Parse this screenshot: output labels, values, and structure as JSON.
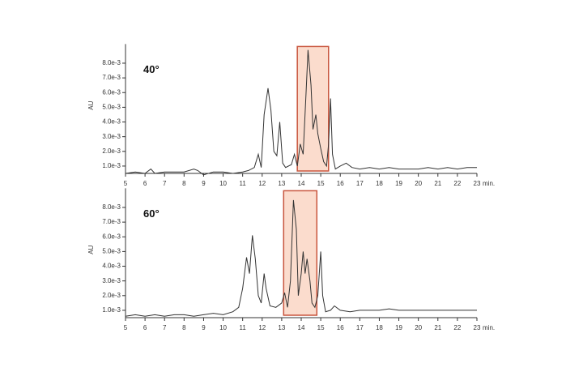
{
  "chart_data": [
    {
      "type": "line",
      "label": "40°",
      "ylabel": "AU",
      "xlabel": "min.",
      "line_color": "#333333",
      "highlight": {
        "x": [
          13.8,
          15.4
        ],
        "stroke": "#c8553d",
        "fill": "#fbdccd"
      },
      "xlim": [
        5,
        23
      ],
      "xticks": [
        5,
        6,
        7,
        8,
        9,
        10,
        11,
        12,
        13,
        14,
        15,
        16,
        17,
        18,
        19,
        20,
        21,
        22,
        23
      ],
      "ylim": [
        0.0005,
        0.0093
      ],
      "yticks": [
        {
          "value": 0.001,
          "label": "1.0e-3"
        },
        {
          "value": 0.002,
          "label": "2.0e-3"
        },
        {
          "value": 0.003,
          "label": "3.0e-3"
        },
        {
          "value": 0.004,
          "label": "4.0e-3"
        },
        {
          "value": 0.005,
          "label": "5.0e-3"
        },
        {
          "value": 0.006,
          "label": "6.0e-3"
        },
        {
          "value": 0.007,
          "label": "7.0e-3"
        },
        {
          "value": 0.008,
          "label": "8.0e-3"
        }
      ],
      "x": [
        5,
        5.5,
        6,
        6.3,
        6.5,
        7,
        7.5,
        8,
        8.5,
        8.7,
        9,
        9.5,
        10,
        10.5,
        11,
        11.3,
        11.6,
        11.8,
        11.95,
        12.1,
        12.3,
        12.45,
        12.6,
        12.75,
        12.9,
        13.05,
        13.2,
        13.5,
        13.65,
        13.8,
        13.95,
        14.1,
        14.25,
        14.35,
        14.5,
        14.6,
        14.75,
        14.85,
        15.0,
        15.15,
        15.3,
        15.4,
        15.5,
        15.6,
        15.75,
        16,
        16.3,
        16.6,
        17,
        17.5,
        18,
        18.5,
        19,
        19.5,
        20,
        20.5,
        21,
        21.5,
        22,
        22.5,
        23
      ],
      "values": [
        0.0005,
        0.0006,
        0.0005,
        0.0008,
        0.0005,
        0.0006,
        0.0006,
        0.0006,
        0.0008,
        0.0007,
        0.0004,
        0.0006,
        0.0006,
        0.0005,
        0.0006,
        0.0007,
        0.0009,
        0.0018,
        0.0009,
        0.0045,
        0.0063,
        0.0048,
        0.002,
        0.0017,
        0.004,
        0.0012,
        0.0009,
        0.0011,
        0.0018,
        0.001,
        0.0025,
        0.0018,
        0.006,
        0.0089,
        0.0065,
        0.0035,
        0.0045,
        0.0032,
        0.0022,
        0.0013,
        0.001,
        0.0025,
        0.0056,
        0.0018,
        0.0008,
        0.001,
        0.0012,
        0.0009,
        0.0008,
        0.0009,
        0.0008,
        0.0009,
        0.0008,
        0.0008,
        0.0008,
        0.0009,
        0.0008,
        0.0009,
        0.0008,
        0.0009,
        0.0009
      ]
    },
    {
      "type": "line",
      "label": "60°",
      "ylabel": "AU",
      "xlabel": "min.",
      "line_color": "#333333",
      "highlight": {
        "x": [
          13.1,
          14.8
        ],
        "stroke": "#c8553d",
        "fill": "#fbdccd"
      },
      "xlim": [
        5,
        23
      ],
      "xticks": [
        5,
        6,
        7,
        8,
        9,
        10,
        11,
        12,
        13,
        14,
        15,
        16,
        17,
        18,
        19,
        20,
        21,
        22,
        23
      ],
      "ylim": [
        0.0005,
        0.0093
      ],
      "yticks": [
        {
          "value": 0.001,
          "label": "1.0e-3"
        },
        {
          "value": 0.002,
          "label": "2.0e-3"
        },
        {
          "value": 0.003,
          "label": "3.0e-3"
        },
        {
          "value": 0.004,
          "label": "4.0e-3"
        },
        {
          "value": 0.005,
          "label": "5.0e-3"
        },
        {
          "value": 0.006,
          "label": "6.0e-3"
        },
        {
          "value": 0.007,
          "label": "7.0e-3"
        },
        {
          "value": 0.008,
          "label": "8.0e-3"
        }
      ],
      "x": [
        5,
        5.5,
        6,
        6.5,
        7,
        7.5,
        8,
        8.5,
        9,
        9.5,
        10,
        10.5,
        10.8,
        11,
        11.2,
        11.35,
        11.5,
        11.65,
        11.8,
        11.95,
        12.1,
        12.2,
        12.4,
        12.7,
        13.0,
        13.15,
        13.3,
        13.45,
        13.6,
        13.75,
        13.85,
        14.0,
        14.1,
        14.2,
        14.3,
        14.45,
        14.55,
        14.7,
        14.85,
        15.0,
        15.1,
        15.25,
        15.5,
        15.7,
        16,
        16.5,
        17,
        17.5,
        18,
        18.5,
        19,
        19.5,
        20,
        20.5,
        21,
        21.5,
        22,
        22.5,
        23
      ],
      "values": [
        0.0006,
        0.0007,
        0.0006,
        0.0007,
        0.0006,
        0.0007,
        0.0007,
        0.0006,
        0.0007,
        0.0008,
        0.0007,
        0.0009,
        0.0012,
        0.0025,
        0.0046,
        0.0035,
        0.0061,
        0.0045,
        0.002,
        0.0015,
        0.0035,
        0.0025,
        0.0013,
        0.0012,
        0.0015,
        0.0022,
        0.0012,
        0.003,
        0.0085,
        0.0065,
        0.002,
        0.0035,
        0.005,
        0.0035,
        0.0045,
        0.003,
        0.0015,
        0.0012,
        0.002,
        0.005,
        0.002,
        0.0009,
        0.001,
        0.0013,
        0.001,
        0.0009,
        0.001,
        0.001,
        0.001,
        0.0011,
        0.001,
        0.001,
        0.001,
        0.001,
        0.001,
        0.001,
        0.001,
        0.001,
        0.001
      ]
    }
  ]
}
